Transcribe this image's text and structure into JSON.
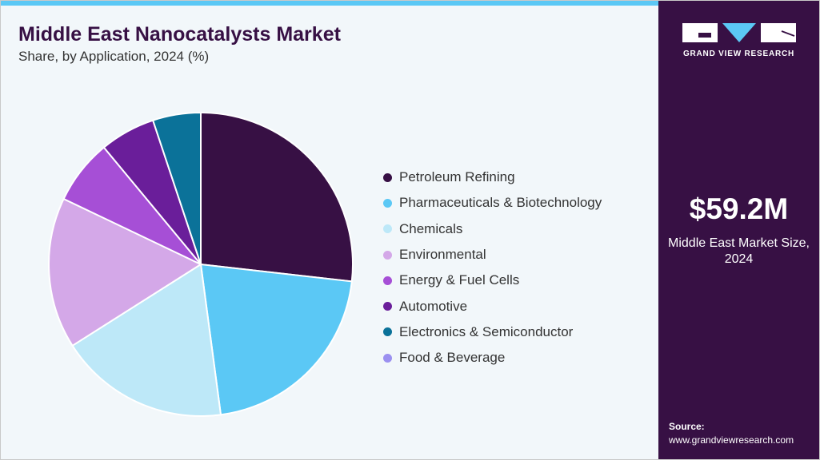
{
  "chart_data": {
    "type": "pie",
    "title": "Middle East Nanocatalysts Market",
    "subtitle": "Share, by Application, 2024 (%)",
    "legend_position": "right",
    "series": [
      {
        "name": "Petroleum Refining",
        "value": 26.8,
        "color": "#371044"
      },
      {
        "name": "Pharmaceuticals & Biotechnology",
        "value": 21.1,
        "color": "#5bc8f5"
      },
      {
        "name": "Chemicals",
        "value": 18.1,
        "color": "#bde8f8"
      },
      {
        "name": "Environmental",
        "value": 16.1,
        "color": "#d4a8e8"
      },
      {
        "name": "Energy & Fuel Cells",
        "value": 6.9,
        "color": "#a64fd6"
      },
      {
        "name": "Automotive",
        "value": 5.9,
        "color": "#6a1e9a"
      },
      {
        "name": "Electronics & Semiconductor",
        "value": 5.1,
        "color": "#0b7299"
      },
      {
        "name": "Food & Beverage",
        "value": 0,
        "color": "#9b90f0"
      }
    ]
  },
  "sidebar": {
    "logo_text": "GRAND VIEW RESEARCH",
    "market_value": "$59.2M",
    "market_label": "Middle East Market Size, 2024",
    "source_label": "Source:",
    "source_url": "www.grandviewresearch.com"
  }
}
